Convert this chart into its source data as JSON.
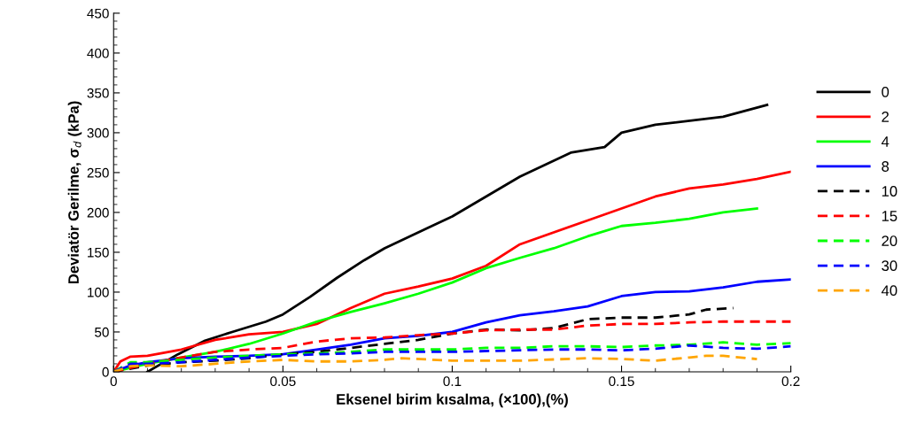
{
  "chart_data": {
    "type": "line",
    "xlabel": "Eksenel birim kısalma, (×100),(%)",
    "ylabel": "Deviatör Gerilme, σ$_{d}$ (kPa)",
    "xlim": [
      0,
      0.2
    ],
    "xticks": [
      0,
      0.05,
      0.1,
      0.15,
      0.2
    ],
    "ylim": [
      0,
      450
    ],
    "yticks": [
      0,
      50,
      100,
      150,
      200,
      250,
      300,
      350,
      400,
      450
    ],
    "grid": false,
    "legend": "right",
    "marker": "none",
    "series": [
      {
        "name": "0",
        "color": "#000000",
        "line_style": "solid",
        "x": [
          0.01,
          0.019,
          0.027,
          0.035,
          0.045,
          0.05,
          0.058,
          0.066,
          0.074,
          0.08,
          0.1,
          0.12,
          0.135,
          0.145,
          0.15,
          0.16,
          0.18,
          0.193
        ],
        "values": [
          0,
          22,
          39,
          50,
          63,
          72,
          94,
          118,
          140,
          155,
          195,
          245,
          275,
          282,
          300,
          310,
          320,
          335
        ]
      },
      {
        "name": "2",
        "color": "#ff0000",
        "line_style": "solid",
        "x": [
          0,
          0.002,
          0.005,
          0.01,
          0.02,
          0.03,
          0.04,
          0.05,
          0.06,
          0.07,
          0.08,
          0.09,
          0.1,
          0.11,
          0.12,
          0.14,
          0.15,
          0.16,
          0.17,
          0.18,
          0.19,
          0.2
        ],
        "values": [
          0,
          13,
          19,
          20,
          28,
          40,
          47,
          50,
          60,
          80,
          98,
          107,
          117,
          133,
          160,
          190,
          205,
          220,
          230,
          235,
          242,
          251
        ]
      },
      {
        "name": "4",
        "color": "#00ff00",
        "line_style": "solid",
        "x": [
          0,
          0.01,
          0.02,
          0.03,
          0.04,
          0.05,
          0.06,
          0.07,
          0.08,
          0.09,
          0.1,
          0.11,
          0.12,
          0.13,
          0.14,
          0.15,
          0.16,
          0.17,
          0.18,
          0.19
        ],
        "values": [
          0,
          10,
          18,
          25,
          35,
          48,
          63,
          75,
          86,
          98,
          112,
          130,
          143,
          155,
          170,
          183,
          187,
          192,
          200,
          205
        ]
      },
      {
        "name": "8",
        "color": "#0000ff",
        "line_style": "solid",
        "x": [
          0,
          0.005,
          0.01,
          0.02,
          0.03,
          0.04,
          0.05,
          0.06,
          0.07,
          0.08,
          0.09,
          0.1,
          0.11,
          0.12,
          0.13,
          0.14,
          0.15,
          0.16,
          0.17,
          0.18,
          0.19,
          0.2
        ],
        "values": [
          0,
          8,
          12,
          17,
          19,
          20,
          22,
          28,
          34,
          42,
          45,
          50,
          62,
          71,
          76,
          82,
          95,
          100,
          101,
          106,
          113,
          116
        ]
      },
      {
        "name": "10",
        "color": "#000000",
        "line_style": "dashed",
        "x": [
          0,
          0.01,
          0.02,
          0.03,
          0.04,
          0.05,
          0.06,
          0.07,
          0.08,
          0.09,
          0.1,
          0.11,
          0.12,
          0.13,
          0.14,
          0.15,
          0.16,
          0.17,
          0.175,
          0.183
        ],
        "values": [
          0,
          8,
          12,
          14,
          17,
          22,
          25,
          30,
          35,
          40,
          48,
          53,
          52,
          55,
          66,
          68,
          68,
          72,
          78,
          80
        ]
      },
      {
        "name": "15",
        "color": "#ff0000",
        "line_style": "dashed",
        "x": [
          0,
          0.01,
          0.02,
          0.03,
          0.04,
          0.05,
          0.06,
          0.07,
          0.08,
          0.09,
          0.1,
          0.11,
          0.12,
          0.13,
          0.14,
          0.15,
          0.16,
          0.17,
          0.18,
          0.2
        ],
        "values": [
          0,
          10,
          18,
          25,
          28,
          30,
          38,
          42,
          43,
          46,
          48,
          52,
          53,
          53,
          58,
          60,
          60,
          62,
          63,
          63
        ]
      },
      {
        "name": "20",
        "color": "#00ff00",
        "line_style": "dashed",
        "x": [
          0,
          0.005,
          0.01,
          0.02,
          0.03,
          0.04,
          0.05,
          0.06,
          0.07,
          0.08,
          0.09,
          0.1,
          0.11,
          0.12,
          0.13,
          0.14,
          0.15,
          0.16,
          0.17,
          0.18,
          0.19,
          0.2
        ],
        "values": [
          0,
          12,
          12,
          15,
          18,
          20,
          22,
          23,
          25,
          28,
          28,
          28,
          30,
          30,
          32,
          32,
          31,
          33,
          34,
          37,
          34,
          36
        ]
      },
      {
        "name": "30",
        "color": "#0000ff",
        "line_style": "dashed",
        "x": [
          0,
          0.005,
          0.01,
          0.02,
          0.03,
          0.04,
          0.05,
          0.06,
          0.07,
          0.08,
          0.1,
          0.12,
          0.13,
          0.14,
          0.15,
          0.16,
          0.17,
          0.18,
          0.19,
          0.2
        ],
        "values": [
          0,
          10,
          10,
          12,
          15,
          18,
          20,
          22,
          23,
          25,
          25,
          27,
          28,
          28,
          27,
          29,
          33,
          30,
          29,
          32
        ]
      },
      {
        "name": "40",
        "color": "#ffa500",
        "line_style": "dashed",
        "x": [
          0,
          0.005,
          0.01,
          0.02,
          0.03,
          0.04,
          0.05,
          0.06,
          0.07,
          0.08,
          0.085,
          0.1,
          0.12,
          0.14,
          0.15,
          0.16,
          0.17,
          0.175,
          0.18,
          0.19
        ],
        "values": [
          0,
          7,
          8,
          7,
          10,
          13,
          15,
          13,
          13,
          15,
          17,
          14,
          14,
          17,
          16,
          14,
          18,
          20,
          20,
          16
        ]
      }
    ]
  }
}
